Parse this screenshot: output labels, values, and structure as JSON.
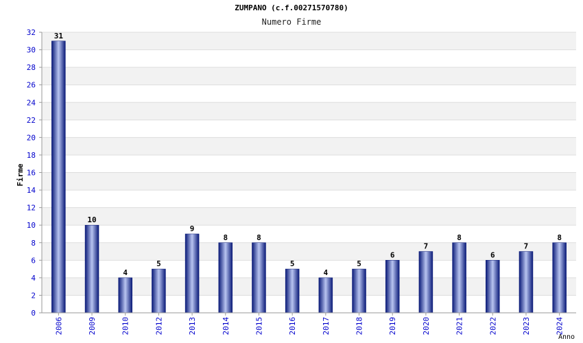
{
  "chart_data": {
    "type": "bar",
    "title": "ZUMPANO (c.f.00271570780)",
    "subtitle": "Numero Firme",
    "xlabel": "Anno",
    "ylabel": "Firme",
    "ylim": [
      0,
      32
    ],
    "yticks": [
      0,
      2,
      4,
      6,
      8,
      10,
      12,
      14,
      16,
      18,
      20,
      22,
      24,
      26,
      28,
      30,
      32
    ],
    "categories": [
      "2006",
      "2009",
      "2010",
      "2012",
      "2013",
      "2014",
      "2015",
      "2016",
      "2017",
      "2018",
      "2019",
      "2020",
      "2021",
      "2022",
      "2023",
      "2024"
    ],
    "values": [
      31,
      10,
      4,
      5,
      9,
      8,
      8,
      5,
      4,
      5,
      6,
      7,
      8,
      6,
      7,
      8
    ],
    "grid": true,
    "legend": "none",
    "colors": {
      "bar_dark": "#0a1a78",
      "bar_light": "#b8c4f0",
      "tick_label": "#0000cc",
      "band": "#f2f2f2"
    }
  }
}
